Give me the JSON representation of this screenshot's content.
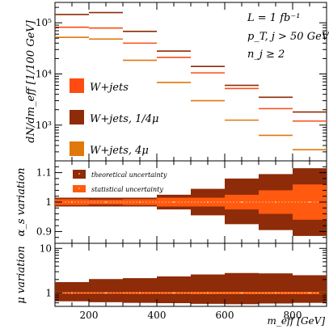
{
  "chart_data": [
    {
      "panel": "main",
      "type": "line",
      "ylabel": "dN/dm_eff [1/100 GeV]",
      "yscale": "log",
      "ylim": [
        200,
        250000
      ],
      "xlim": [
        100,
        900
      ],
      "yticks": [
        {
          "v": 1000,
          "label": "10³"
        },
        {
          "v": 10000,
          "label": "10⁴"
        },
        {
          "v": 100000,
          "label": "10⁵"
        }
      ],
      "annotations": [
        "L = 1 fb⁻¹",
        "p_T, j > 50 GeV",
        "n_j ≥ 2"
      ],
      "legend_position": "left",
      "series": [
        {
          "name": "W+jets",
          "color": "#ff4b12",
          "bins": [
            [
              100,
              200
            ],
            [
              200,
              300
            ],
            [
              300,
              400
            ],
            [
              400,
              500
            ],
            [
              500,
              600
            ],
            [
              600,
              700
            ],
            [
              700,
              800
            ],
            [
              800,
              900
            ]
          ],
          "values": [
            82000,
            79000,
            40000,
            21000,
            10500,
            5200,
            2100,
            1200
          ]
        },
        {
          "name": "W+jets, 1/4μ",
          "color": "#8e2b08",
          "bins": [
            [
              100,
              200
            ],
            [
              200,
              300
            ],
            [
              300,
              400
            ],
            [
              400,
              500
            ],
            [
              500,
              600
            ],
            [
              600,
              700
            ],
            [
              700,
              800
            ],
            [
              800,
              900
            ]
          ],
          "values": [
            145000,
            158000,
            68000,
            28000,
            14000,
            6000,
            3500,
            1800
          ]
        },
        {
          "name": "W+jets, 4μ",
          "color": "#e0780c",
          "bins": [
            [
              100,
              200
            ],
            [
              200,
              300
            ],
            [
              300,
              400
            ],
            [
              400,
              500
            ],
            [
              500,
              600
            ],
            [
              600,
              700
            ],
            [
              700,
              800
            ],
            [
              800,
              900
            ]
          ],
          "values": [
            52000,
            48000,
            18500,
            6800,
            3000,
            1250,
            630,
            330
          ]
        }
      ]
    },
    {
      "panel": "alpha_s",
      "type": "area",
      "ylabel": "α_s variation",
      "ylim": [
        0.86,
        1.14
      ],
      "xlim": [
        100,
        900
      ],
      "yticks": [
        {
          "v": 0.9,
          "label": "0.9"
        },
        {
          "v": 1,
          "label": "1"
        },
        {
          "v": 1.1,
          "label": "1.1"
        }
      ],
      "legend": [
        "theoretical uncertainty",
        "statistical uncertainty"
      ],
      "legend_position": "top-left",
      "bins": [
        [
          100,
          200
        ],
        [
          200,
          300
        ],
        [
          300,
          400
        ],
        [
          400,
          500
        ],
        [
          500,
          600
        ],
        [
          600,
          700
        ],
        [
          700,
          800
        ],
        [
          800,
          900
        ]
      ],
      "theo_low": [
        0.985,
        0.985,
        0.985,
        0.975,
        0.955,
        0.925,
        0.905,
        0.885
      ],
      "theo_high": [
        1.015,
        1.015,
        1.015,
        1.025,
        1.045,
        1.08,
        1.095,
        1.115
      ],
      "stat_low": [
        0.99,
        0.992,
        0.99,
        0.985,
        0.985,
        0.975,
        0.96,
        0.94
      ],
      "stat_high": [
        1.01,
        1.008,
        1.01,
        1.015,
        1.015,
        1.025,
        1.04,
        1.06
      ]
    },
    {
      "panel": "mu",
      "type": "area",
      "ylabel": "μ variation",
      "xlabel": "m_eff [GeV]",
      "yscale": "log",
      "ylim": [
        0.5,
        13
      ],
      "xlim": [
        100,
        900
      ],
      "xticks": [
        200,
        400,
        600,
        800
      ],
      "yticks": [
        {
          "v": 1,
          "label": "1"
        },
        {
          "v": 10,
          "label": "10"
        }
      ],
      "bins": [
        [
          100,
          200
        ],
        [
          200,
          300
        ],
        [
          300,
          400
        ],
        [
          400,
          500
        ],
        [
          500,
          600
        ],
        [
          600,
          700
        ],
        [
          700,
          800
        ],
        [
          800,
          900
        ]
      ],
      "theo_low": [
        0.65,
        0.62,
        0.6,
        0.59,
        0.57,
        0.56,
        0.58,
        0.6
      ],
      "theo_high": [
        1.75,
        2.05,
        2.15,
        2.35,
        2.6,
        2.8,
        2.75,
        2.5
      ],
      "stat_low": [
        0.96,
        0.96,
        0.95,
        0.95,
        0.94,
        0.94,
        0.94,
        0.94
      ],
      "stat_high": [
        1.04,
        1.04,
        1.05,
        1.05,
        1.06,
        1.06,
        1.06,
        1.06
      ]
    }
  ]
}
